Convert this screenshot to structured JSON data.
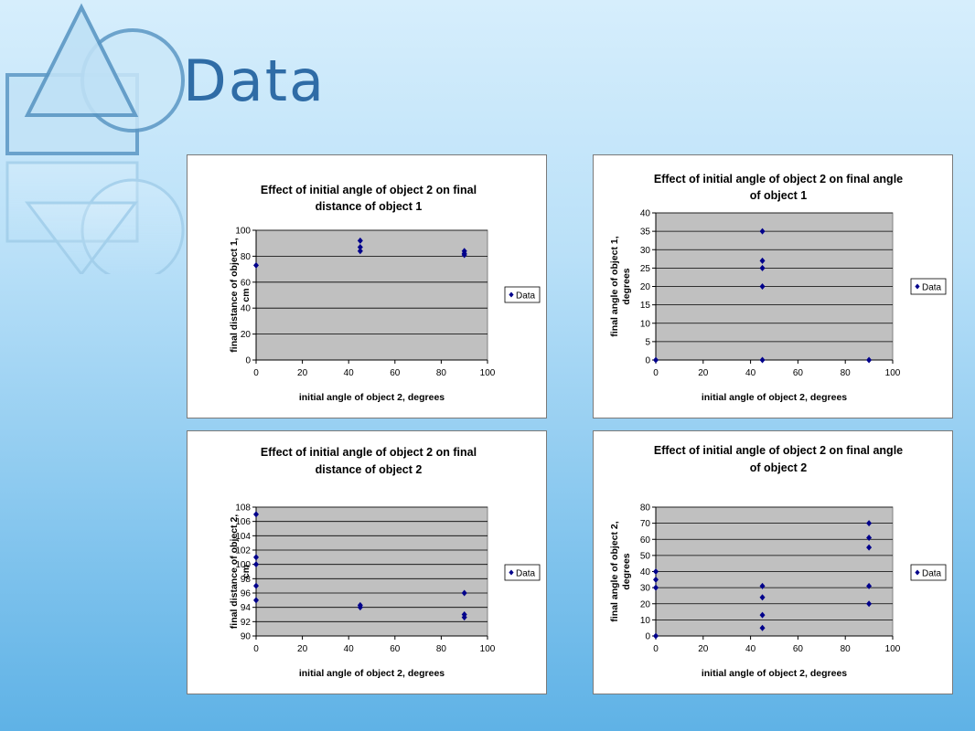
{
  "slide": {
    "title": "Data"
  },
  "chart_data": [
    {
      "type": "scatter",
      "title": "Effect of initial angle of object 2 on final distance of object 1",
      "title_lines": [
        "Effect of initial angle of object 2 on final",
        "distance of object 1"
      ],
      "xlabel": "initial angle of object 2, degrees",
      "ylabel": "final distance of object 1, cm",
      "ylabel_lines": [
        "final distance of object 1,",
        "cm"
      ],
      "xlim": [
        0,
        100
      ],
      "ylim": [
        0,
        100
      ],
      "xticks": [
        0,
        20,
        40,
        60,
        80,
        100
      ],
      "yticks": [
        0,
        20,
        40,
        60,
        80,
        100
      ],
      "grid": true,
      "legend": "right",
      "series": [
        {
          "name": "Data",
          "color": "#00008b",
          "points": [
            [
              0,
              73
            ],
            [
              45,
              84
            ],
            [
              45,
              87
            ],
            [
              45,
              92
            ],
            [
              90,
              81
            ],
            [
              90,
              82
            ],
            [
              90,
              84
            ]
          ]
        }
      ]
    },
    {
      "type": "scatter",
      "title": "Effect of initial angle of object 2 on final angle of object 1",
      "title_lines": [
        "Effect of initial angle of object 2 on final angle",
        "of object 1"
      ],
      "xlabel": "initial angle of object 2, degrees",
      "ylabel": "final angle of object 1, degrees",
      "ylabel_lines": [
        "final angle of object 1,",
        "degrees"
      ],
      "xlim": [
        0,
        100
      ],
      "ylim": [
        0,
        40
      ],
      "xticks": [
        0,
        20,
        40,
        60,
        80,
        100
      ],
      "yticks": [
        0,
        5,
        10,
        15,
        20,
        25,
        30,
        35,
        40
      ],
      "grid": true,
      "legend": "right",
      "series": [
        {
          "name": "Data",
          "color": "#00008b",
          "points": [
            [
              0,
              0
            ],
            [
              45,
              35
            ],
            [
              45,
              27
            ],
            [
              45,
              25
            ],
            [
              45,
              20
            ],
            [
              45,
              0
            ],
            [
              90,
              0
            ]
          ]
        }
      ]
    },
    {
      "type": "scatter",
      "title": "Effect of initial angle of object 2 on final distance of object 2",
      "title_lines": [
        "Effect of initial angle of object 2 on final",
        "distance of object 2"
      ],
      "xlabel": "initial angle of object 2, degrees",
      "ylabel": "final distance of object 2, cm",
      "ylabel_lines": [
        "final distance of object 2,",
        "cm"
      ],
      "xlim": [
        0,
        100
      ],
      "ylim": [
        90,
        108
      ],
      "xticks": [
        0,
        20,
        40,
        60,
        80,
        100
      ],
      "yticks": [
        90,
        92,
        94,
        96,
        98,
        100,
        102,
        104,
        106,
        108
      ],
      "grid": true,
      "legend": "right",
      "series": [
        {
          "name": "Data",
          "color": "#00008b",
          "points": [
            [
              0,
              107
            ],
            [
              0,
              101
            ],
            [
              0,
              100
            ],
            [
              0,
              97
            ],
            [
              0,
              95
            ],
            [
              45,
              94.3
            ],
            [
              45,
              94
            ],
            [
              90,
              96
            ],
            [
              90,
              93
            ],
            [
              90,
              92.6
            ]
          ]
        }
      ]
    },
    {
      "type": "scatter",
      "title": "Effect of initial angle of object 2 on final angle of object 2",
      "title_lines": [
        "Effect of initial angle of object 2 on final angle",
        "of object 2"
      ],
      "xlabel": "initial angle of object 2, degrees",
      "ylabel": "final angle of object 2, degrees",
      "ylabel_lines": [
        "final angle of object 2,",
        "degrees"
      ],
      "xlim": [
        0,
        100
      ],
      "ylim": [
        0,
        80
      ],
      "xticks": [
        0,
        20,
        40,
        60,
        80,
        100
      ],
      "yticks": [
        0,
        10,
        20,
        30,
        40,
        50,
        60,
        70,
        80
      ],
      "grid": true,
      "legend": "right",
      "series": [
        {
          "name": "Data",
          "color": "#00008b",
          "points": [
            [
              0,
              40
            ],
            [
              0,
              35
            ],
            [
              0,
              30
            ],
            [
              0,
              0
            ],
            [
              45,
              31
            ],
            [
              45,
              24
            ],
            [
              45,
              13
            ],
            [
              45,
              5
            ],
            [
              90,
              70
            ],
            [
              90,
              61
            ],
            [
              90,
              55
            ],
            [
              90,
              31
            ],
            [
              90,
              20
            ]
          ]
        }
      ]
    }
  ]
}
